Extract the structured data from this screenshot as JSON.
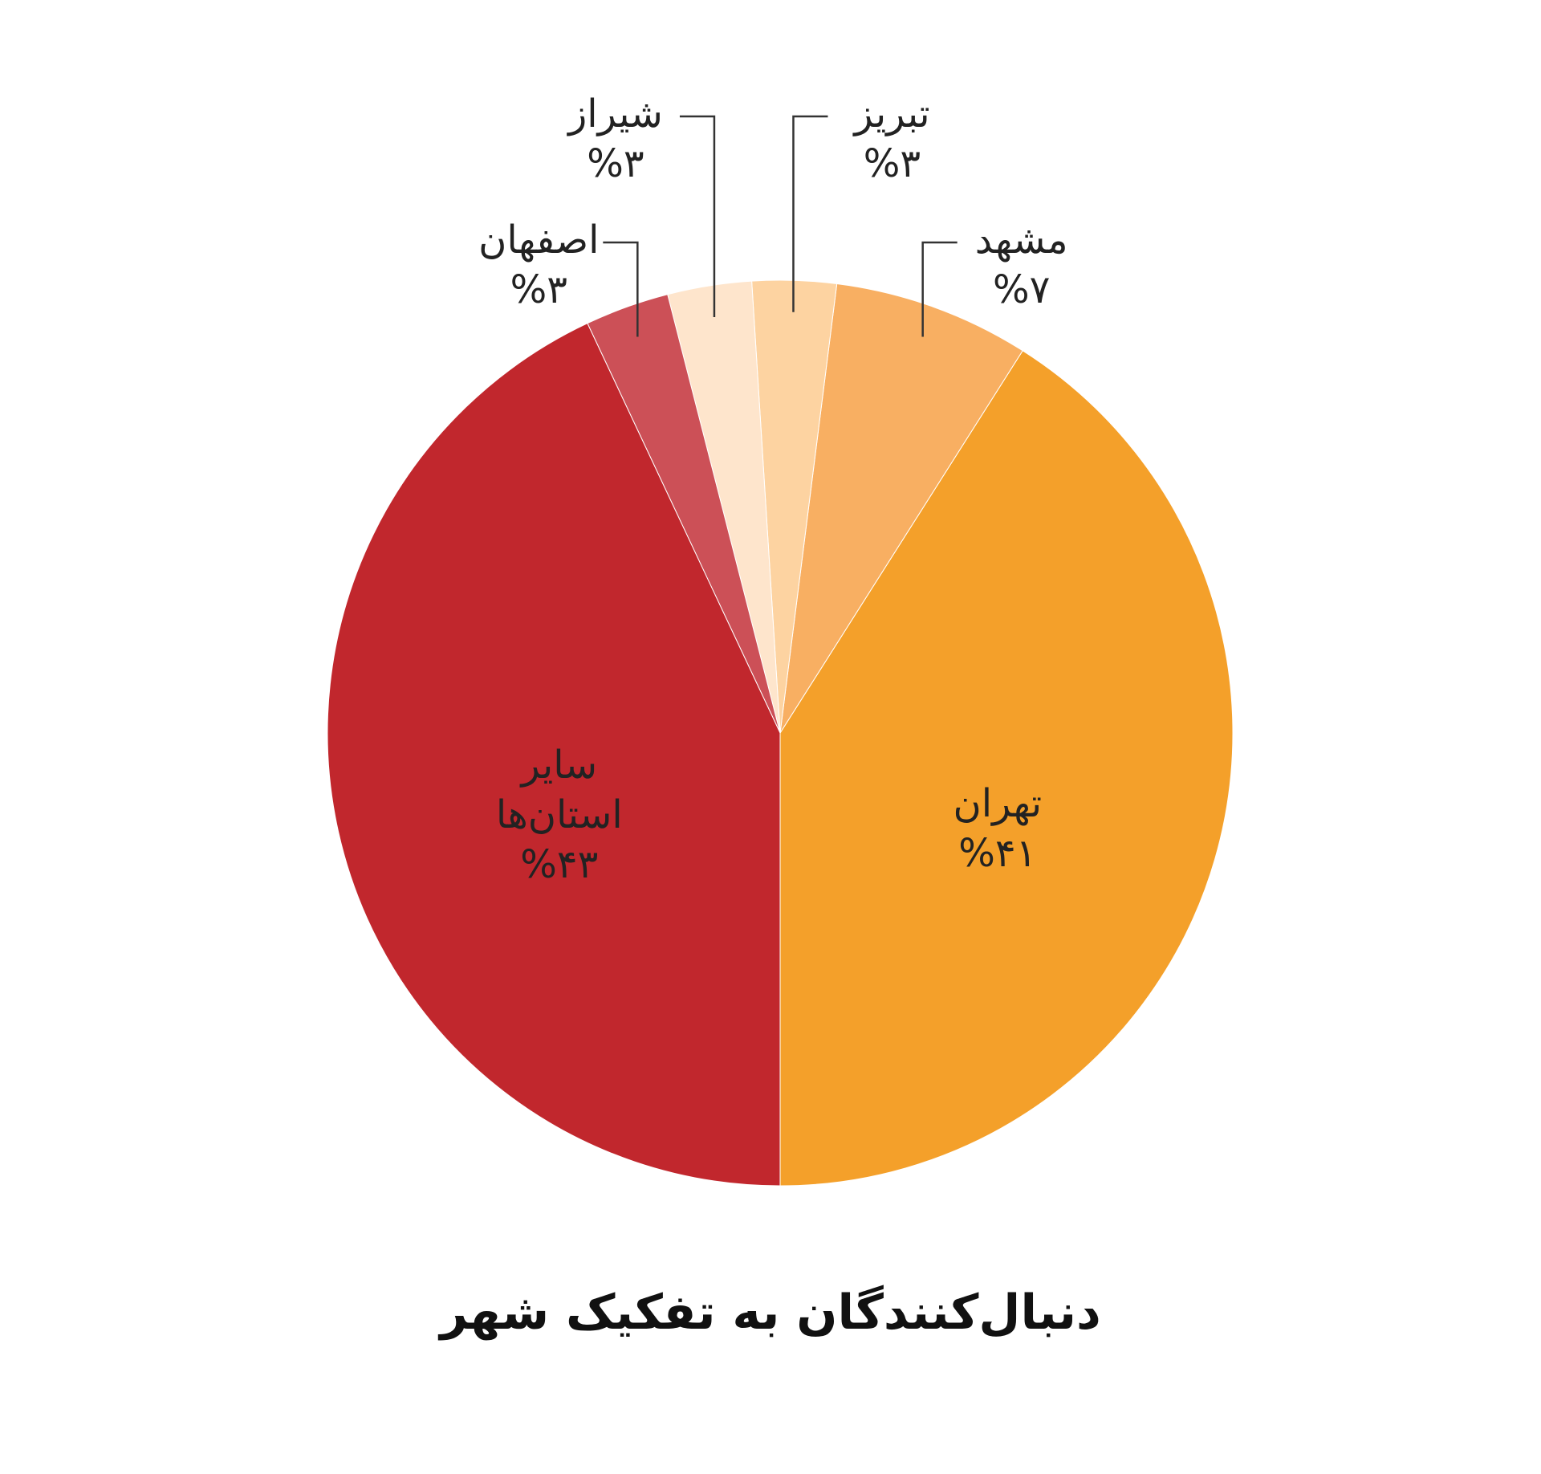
{
  "chart_data": {
    "type": "pie",
    "title": "دنبال‌کنندگان به تفکیک شهر",
    "categories": [
      "تهران",
      "مشهد",
      "تبریز",
      "شیراز",
      "اصفهان",
      "سایر استان‌ها"
    ],
    "values": [
      41,
      7,
      3,
      3,
      3,
      43
    ],
    "value_labels": [
      "%۴۱",
      "%۷",
      "%۳",
      "%۳",
      "%۳",
      "%۴۳"
    ],
    "colors": [
      "#f4a02a",
      "#f8af62",
      "#fdd3a1",
      "#fee5cc",
      "#cc5057",
      "#c1272d"
    ]
  }
}
